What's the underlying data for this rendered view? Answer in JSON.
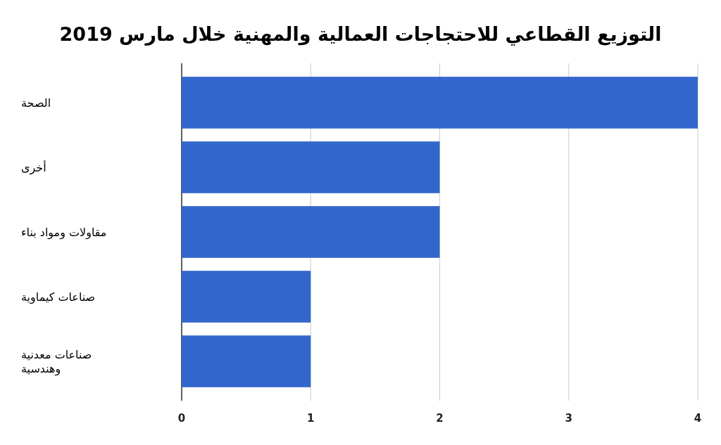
{
  "chart_data": {
    "type": "bar",
    "orientation": "horizontal",
    "title": "التوزيع القطاعي للاحتجاجات العمالية والمهنية خلال مارس 2019",
    "categories": [
      "الصحة",
      "أخرى",
      "مقاولات ومواد بناء",
      "صناعات كيماوية",
      "صناعات معدنية وهندسية"
    ],
    "values": [
      4,
      2,
      2,
      1,
      1
    ],
    "color": "#3366cc",
    "xlim": [
      0,
      4
    ],
    "xticks": [
      0,
      1,
      2,
      3,
      4
    ],
    "grid": "x"
  }
}
